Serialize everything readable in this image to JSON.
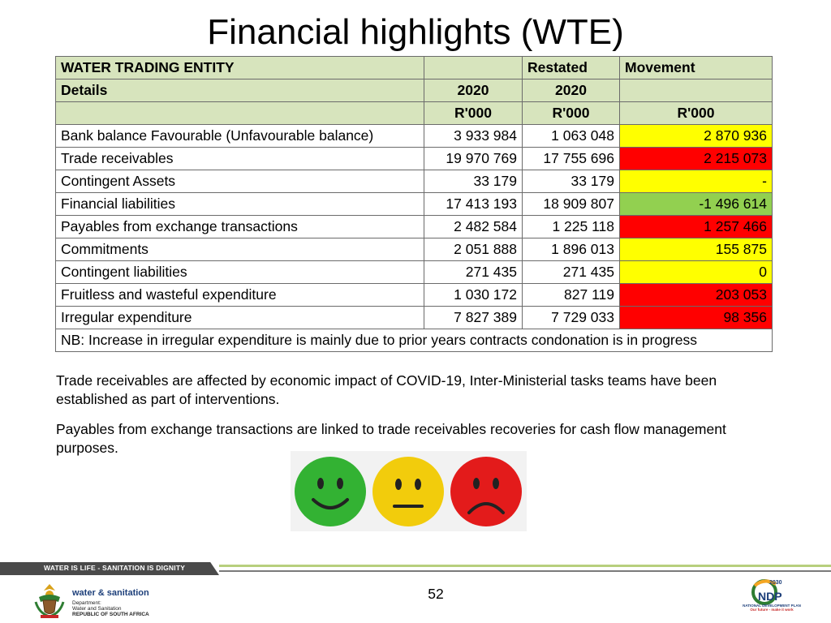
{
  "slide": {
    "title": "Financial highlights (WTE)",
    "page_number": "52"
  },
  "table": {
    "header_rows": [
      [
        "WATER TRADING ENTITY",
        "",
        "Restated",
        "Movement"
      ],
      [
        "Details",
        "2020",
        "2020",
        ""
      ],
      [
        "",
        "R'000",
        "R'000",
        "R'000"
      ]
    ],
    "rows": [
      {
        "label": "Bank balance Favourable (Unfavourable balance)",
        "col1": "3 933 984",
        "col2": "1 063 048",
        "movement": "2 870 936",
        "status": "yellow"
      },
      {
        "label": "Trade receivables",
        "col1": "19 970 769",
        "col2": "17 755 696",
        "movement": "2 215 073",
        "status": "red"
      },
      {
        "label": "Contingent Assets",
        "col1": "33 179",
        "col2": "33 179",
        "movement": "-",
        "status": "yellow"
      },
      {
        "label": "Financial liabilities",
        "col1": "17 413 193",
        "col2": "18 909 807",
        "movement": "-1 496 614",
        "status": "green"
      },
      {
        "label": "Payables from exchange transactions",
        "col1": "2 482 584",
        "col2": "1 225 118",
        "movement": "1 257 466",
        "status": "red"
      },
      {
        "label": "Commitments",
        "col1": "2 051 888",
        "col2": "1 896 013",
        "movement": "155 875",
        "status": "yellow"
      },
      {
        "label": "Contingent liabilities",
        "col1": "271 435",
        "col2": "271 435",
        "movement": "0",
        "status": "yellow"
      },
      {
        "label": "Fruitless and wasteful expenditure",
        "col1": "1 030 172",
        "col2": "827 119",
        "movement": "203 053",
        "status": "red"
      },
      {
        "label": "Irregular expenditure",
        "col1": "7 827 389",
        "col2": "7 729 033",
        "movement": "98 356",
        "status": "red"
      }
    ],
    "note": " NB: Increase in irregular expenditure is mainly due to prior years contracts condonation is in progress"
  },
  "paragraphs": {
    "trade": "Trade receivables are affected by economic impact of COVID-19, Inter-Ministerial tasks teams have been established as part of interventions.",
    "payables": " Payables from exchange transactions are linked to trade receivables recoveries for cash flow management purposes."
  },
  "legend_faces": [
    {
      "icon": "happy-face-icon",
      "color": "#33b233"
    },
    {
      "icon": "neutral-face-icon",
      "color": "#f2cc0c"
    },
    {
      "icon": "sad-face-icon",
      "color": "#e31b1b"
    }
  ],
  "footer": {
    "slogan": "WATER IS LIFE - SANITATION IS DIGNITY",
    "dept_name": "water & sanitation",
    "dept_line1": "Department:",
    "dept_line2": "Water and Sanitation",
    "dept_line3": "REPUBLIC OF SOUTH AFRICA",
    "ndp_year": "2030",
    "ndp_logo": "NDP",
    "ndp_line1": "NATIONAL DEVELOPMENT PLAN",
    "ndp_line2": "Our future - make it work"
  },
  "colors": {
    "header_bg": "#d7e4bd",
    "red": "#ff0000",
    "yellow": "#ffff00",
    "green": "#92d050"
  }
}
